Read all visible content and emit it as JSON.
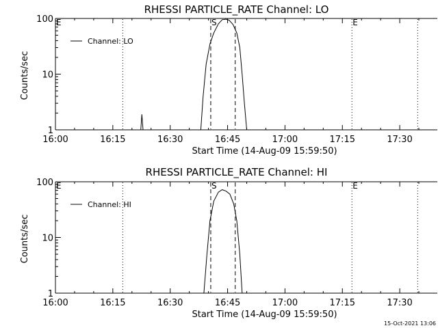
{
  "page": {
    "timestamp": "15-Oct-2021 13:06"
  },
  "chart_data": [
    {
      "type": "line",
      "title": "RHESSI PARTICLE_RATE Channel: LO",
      "xlabel": "Start Time (14-Aug-09 15:59:50)",
      "ylabel": "Counts/sec",
      "y_scale": "log",
      "xlim": [
        0,
        100
      ],
      "ylim": [
        1,
        100
      ],
      "x_units": "minutes after 16:00",
      "x_ticks": [
        {
          "value": 0,
          "label": "16:00"
        },
        {
          "value": 15,
          "label": "16:15"
        },
        {
          "value": 30,
          "label": "16:30"
        },
        {
          "value": 45,
          "label": "16:45"
        },
        {
          "value": 60,
          "label": "17:00"
        },
        {
          "value": 75,
          "label": "17:15"
        },
        {
          "value": 90,
          "label": "17:30"
        }
      ],
      "y_ticks": [
        {
          "value": 1,
          "label": "1"
        },
        {
          "value": 10,
          "label": "10"
        },
        {
          "value": 100,
          "label": "100"
        }
      ],
      "grid": false,
      "legend": {
        "position": "top-left",
        "entries": [
          "Channel: LO"
        ]
      },
      "series": [
        {
          "name": "Channel: LO",
          "color": "#000000",
          "segments": [
            [
              [
                22.3,
                1.0
              ],
              [
                22.6,
                1.9
              ],
              [
                22.9,
                1.0
              ]
            ],
            [
              [
                38.0,
                1.0
              ],
              [
                38.6,
                4
              ],
              [
                39.4,
                15
              ],
              [
                40.4,
                35
              ],
              [
                41.4,
                55
              ],
              [
                42.6,
                80
              ],
              [
                43.6,
                95
              ],
              [
                44.6,
                97
              ],
              [
                45.4,
                93
              ],
              [
                46.4,
                78
              ],
              [
                47.4,
                55
              ],
              [
                48.2,
                30
              ],
              [
                48.8,
                10
              ],
              [
                49.4,
                3
              ],
              [
                50.0,
                1.0
              ]
            ]
          ]
        }
      ],
      "vlines": [
        {
          "x": 17.6,
          "style": "dotted"
        },
        {
          "x": 40.6,
          "style": "dashed",
          "label": "S"
        },
        {
          "x": 47.0,
          "style": "dashed"
        },
        {
          "x": 77.5,
          "style": "dotted",
          "label": "E"
        },
        {
          "x": 94.7,
          "style": "dotted"
        }
      ],
      "edge_label": "E"
    },
    {
      "type": "line",
      "title": "RHESSI PARTICLE_RATE Channel: HI",
      "xlabel": "Start Time (14-Aug-09 15:59:50)",
      "ylabel": "Counts/sec",
      "y_scale": "log",
      "xlim": [
        0,
        100
      ],
      "ylim": [
        1,
        100
      ],
      "x_units": "minutes after 16:00",
      "x_ticks": [
        {
          "value": 0,
          "label": "16:00"
        },
        {
          "value": 15,
          "label": "16:15"
        },
        {
          "value": 30,
          "label": "16:30"
        },
        {
          "value": 45,
          "label": "16:45"
        },
        {
          "value": 60,
          "label": "17:00"
        },
        {
          "value": 75,
          "label": "17:15"
        },
        {
          "value": 90,
          "label": "17:30"
        }
      ],
      "y_ticks": [
        {
          "value": 1,
          "label": "1"
        },
        {
          "value": 10,
          "label": "10"
        },
        {
          "value": 100,
          "label": "100"
        }
      ],
      "grid": false,
      "legend": {
        "position": "top-left",
        "entries": [
          "Channel: HI"
        ]
      },
      "series": [
        {
          "name": "Channel: HI",
          "color": "#000000",
          "segments": [
            [
              [
                38.8,
                1.0
              ],
              [
                39.6,
                5
              ],
              [
                40.4,
                20
              ],
              [
                41.4,
                45
              ],
              [
                42.6,
                65
              ],
              [
                43.6,
                72
              ],
              [
                44.6,
                68
              ],
              [
                45.6,
                60
              ],
              [
                46.6,
                40
              ],
              [
                47.4,
                20
              ],
              [
                48.2,
                5
              ],
              [
                48.8,
                1.0
              ]
            ]
          ]
        }
      ],
      "vlines": [
        {
          "x": 17.6,
          "style": "dotted"
        },
        {
          "x": 40.6,
          "style": "dashed",
          "label": "S"
        },
        {
          "x": 47.0,
          "style": "dashed"
        },
        {
          "x": 77.5,
          "style": "dotted",
          "label": "E"
        },
        {
          "x": 94.7,
          "style": "dotted"
        }
      ],
      "edge_label": "E"
    }
  ]
}
